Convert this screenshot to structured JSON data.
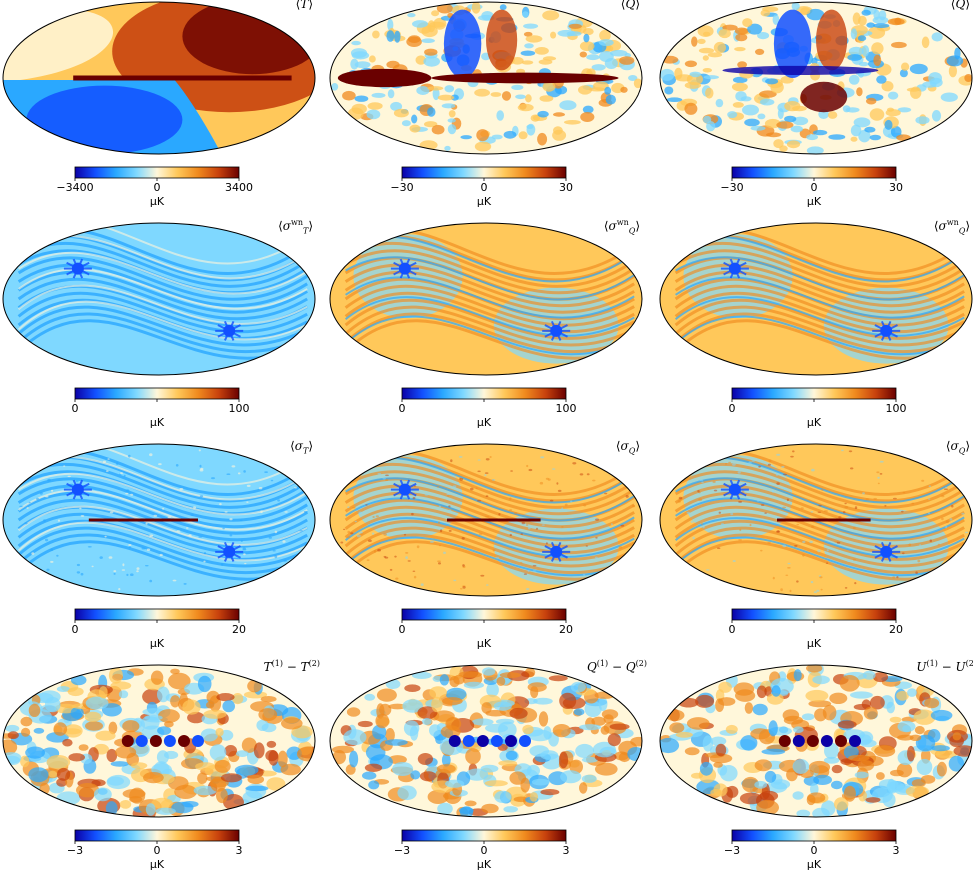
{
  "units": "μK",
  "colors": {
    "colormap": [
      "#0b00a6",
      "#1250ff",
      "#2aa8ff",
      "#7fd8ff",
      "#fff7da",
      "#ffc85a",
      "#f08a1e",
      "#c8420d",
      "#6a0000"
    ],
    "outline": "#000000"
  },
  "panels": [
    {
      "id": "r0c0",
      "row": 0,
      "col": 0,
      "title": "⟨T⟩",
      "title_html": "&#10216;<i>T</i>&#10217;",
      "pattern": "dipole",
      "ticks": [
        "−3400",
        "0",
        "3400"
      ],
      "unit": "μK"
    },
    {
      "id": "r0c1",
      "row": 0,
      "col": 1,
      "title": "⟨Q⟩",
      "title_html": "&#10216;<i>Q</i>&#10217;",
      "pattern": "polarization",
      "ticks": [
        "−30",
        "0",
        "30"
      ],
      "unit": "μK"
    },
    {
      "id": "r0c2",
      "row": 0,
      "col": 2,
      "title": "⟨Q⟩",
      "title_html": "&#10216;<i>Q</i>&#10217;",
      "pattern": "polarization2",
      "ticks": [
        "−30",
        "0",
        "30"
      ],
      "unit": "μK"
    },
    {
      "id": "r1c0",
      "row": 1,
      "col": 0,
      "title": "⟨σ_T^wn⟩",
      "title_html": "&#10216;<i>σ</i><sup>wn</sup><sub><i>T</i></sub>&#10217;",
      "pattern": "noise_wn_T",
      "ticks": [
        "0",
        "",
        "100"
      ],
      "unit": "μK"
    },
    {
      "id": "r1c1",
      "row": 1,
      "col": 1,
      "title": "⟨σ_Q^wn⟩",
      "title_html": "&#10216;<i>σ</i><sup>wn</sup><sub><i>Q</i></sub>&#10217;",
      "pattern": "noise_wn_Q",
      "ticks": [
        "0",
        "",
        "100"
      ],
      "unit": "μK"
    },
    {
      "id": "r1c2",
      "row": 1,
      "col": 2,
      "title": "⟨σ_Q^wn⟩",
      "title_html": "&#10216;<i>σ</i><sup>wn</sup><sub><i>Q</i></sub>&#10217;",
      "pattern": "noise_wn_Q",
      "ticks": [
        "0",
        "",
        "100"
      ],
      "unit": "μK"
    },
    {
      "id": "r2c0",
      "row": 2,
      "col": 0,
      "title": "⟨σ_T⟩",
      "title_html": "&#10216;<i>σ</i><sub><i>T</i></sub>&#10217;",
      "pattern": "noise_T",
      "ticks": [
        "0",
        "",
        "20"
      ],
      "unit": "μK"
    },
    {
      "id": "r2c1",
      "row": 2,
      "col": 1,
      "title": "⟨σ_Q⟩",
      "title_html": "&#10216;<i>σ</i><sub><i>Q</i></sub>&#10217;",
      "pattern": "noise_Q",
      "ticks": [
        "0",
        "",
        "20"
      ],
      "unit": "μK"
    },
    {
      "id": "r2c2",
      "row": 2,
      "col": 2,
      "title": "⟨σ_Q⟩",
      "title_html": "&#10216;<i>σ</i><sub><i>Q</i></sub>&#10217;",
      "pattern": "noise_Q",
      "ticks": [
        "0",
        "",
        "20"
      ],
      "unit": "μK"
    },
    {
      "id": "r3c0",
      "row": 3,
      "col": 0,
      "title": "T(1) − T(2)",
      "title_html": "<i>T</i><sup>(1)</sup> &minus; <i>T</i><sup>(2)</sup>",
      "pattern": "diff",
      "ticks": [
        "−3",
        "0",
        "3"
      ],
      "unit": "μK"
    },
    {
      "id": "r3c1",
      "row": 3,
      "col": 1,
      "title": "Q(1) − Q(2)",
      "title_html": "<i>Q</i><sup>(1)</sup> &minus; <i>Q</i><sup>(2)</sup>",
      "pattern": "diff2",
      "ticks": [
        "−3",
        "0",
        "3"
      ],
      "unit": "μK"
    },
    {
      "id": "r3c2",
      "row": 3,
      "col": 2,
      "title": "U(1) − U(2)",
      "title_html": "<i>U</i><sup>(1)</sup> &minus; <i>U</i><sup>(2)</sup>",
      "pattern": "diff3",
      "ticks": [
        "−3",
        "0",
        "3"
      ],
      "unit": "μK"
    }
  ]
}
